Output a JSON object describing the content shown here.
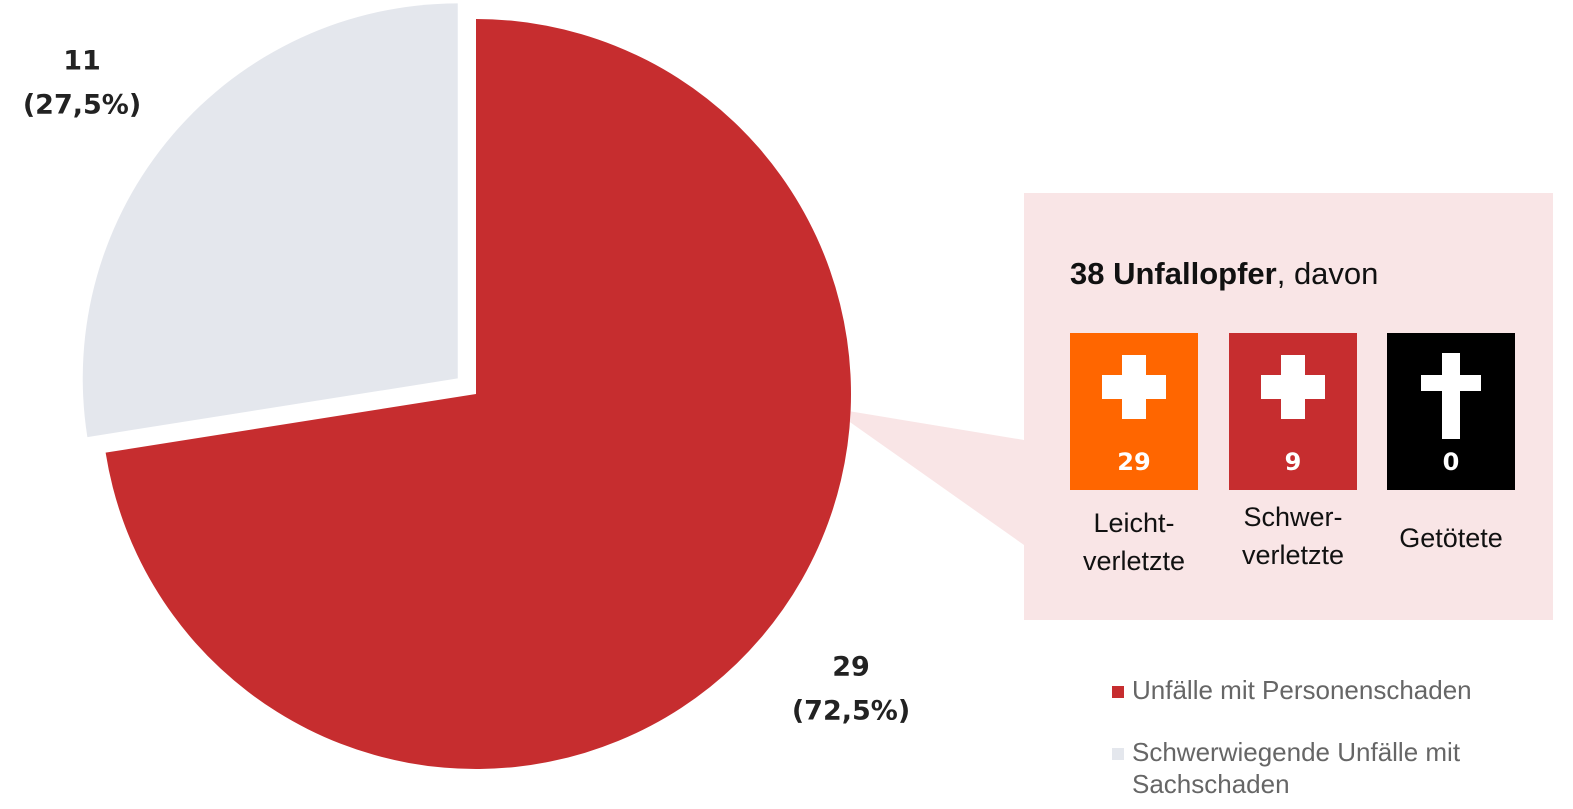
{
  "chart_data": {
    "type": "pie",
    "categories": [
      "Unfälle mit Personenschaden",
      "Schwerwiegende Unfälle mit Sachschaden"
    ],
    "values": [
      29,
      11
    ],
    "percentages": [
      72.5,
      27.5
    ],
    "percentage_labels": [
      "(72,5%)",
      "(27,5%)"
    ],
    "colors": [
      "#c62d2f",
      "#e4e7ed"
    ],
    "legend": "bottom-right",
    "annotation": {
      "title_bold": "38 Unfallopfer",
      "title_rest": ", davon",
      "items": [
        {
          "label_lines": [
            "Leicht-",
            "verletzte"
          ],
          "value": 29,
          "color": "#ff6600"
        },
        {
          "label_lines": [
            "Schwer-",
            "verletzte"
          ],
          "value": 9,
          "color": "#c62d2f"
        },
        {
          "label_lines": [
            "Getötete"
          ],
          "value": 0,
          "color": "#000000"
        }
      ]
    }
  }
}
